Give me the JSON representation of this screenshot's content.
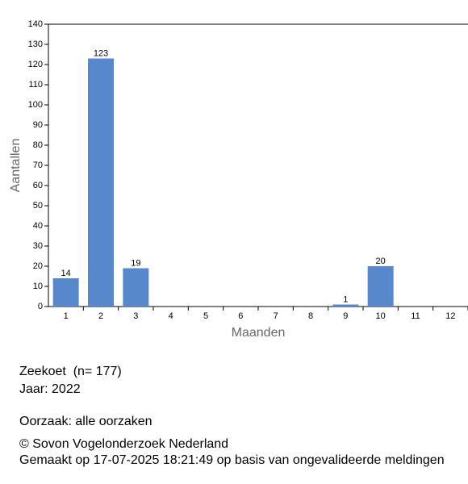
{
  "chart_data": {
    "type": "bar",
    "categories": [
      "1",
      "2",
      "3",
      "4",
      "5",
      "6",
      "7",
      "8",
      "9",
      "10",
      "11",
      "12"
    ],
    "values": [
      14,
      123,
      19,
      null,
      null,
      null,
      null,
      null,
      1,
      20,
      null,
      null
    ],
    "color": "#5888cc",
    "ylim": [
      0,
      140
    ],
    "yticks": [
      0,
      10,
      20,
      30,
      40,
      50,
      60,
      70,
      80,
      90,
      100,
      110,
      120,
      130,
      140
    ],
    "y_label": "Aantallen",
    "x_label": "Maanden",
    "grid": false
  },
  "footer": {
    "lines": [
      "Zeekoet  (n= 177)",
      "Jaar: 2022",
      "Oorzaak: alle oorzaken",
      "© Sovon Vogelonderzoek Nederland",
      "Gemaakt op 17-07-2025 18:21:49 op basis van ongevalideerde meldingen"
    ]
  }
}
